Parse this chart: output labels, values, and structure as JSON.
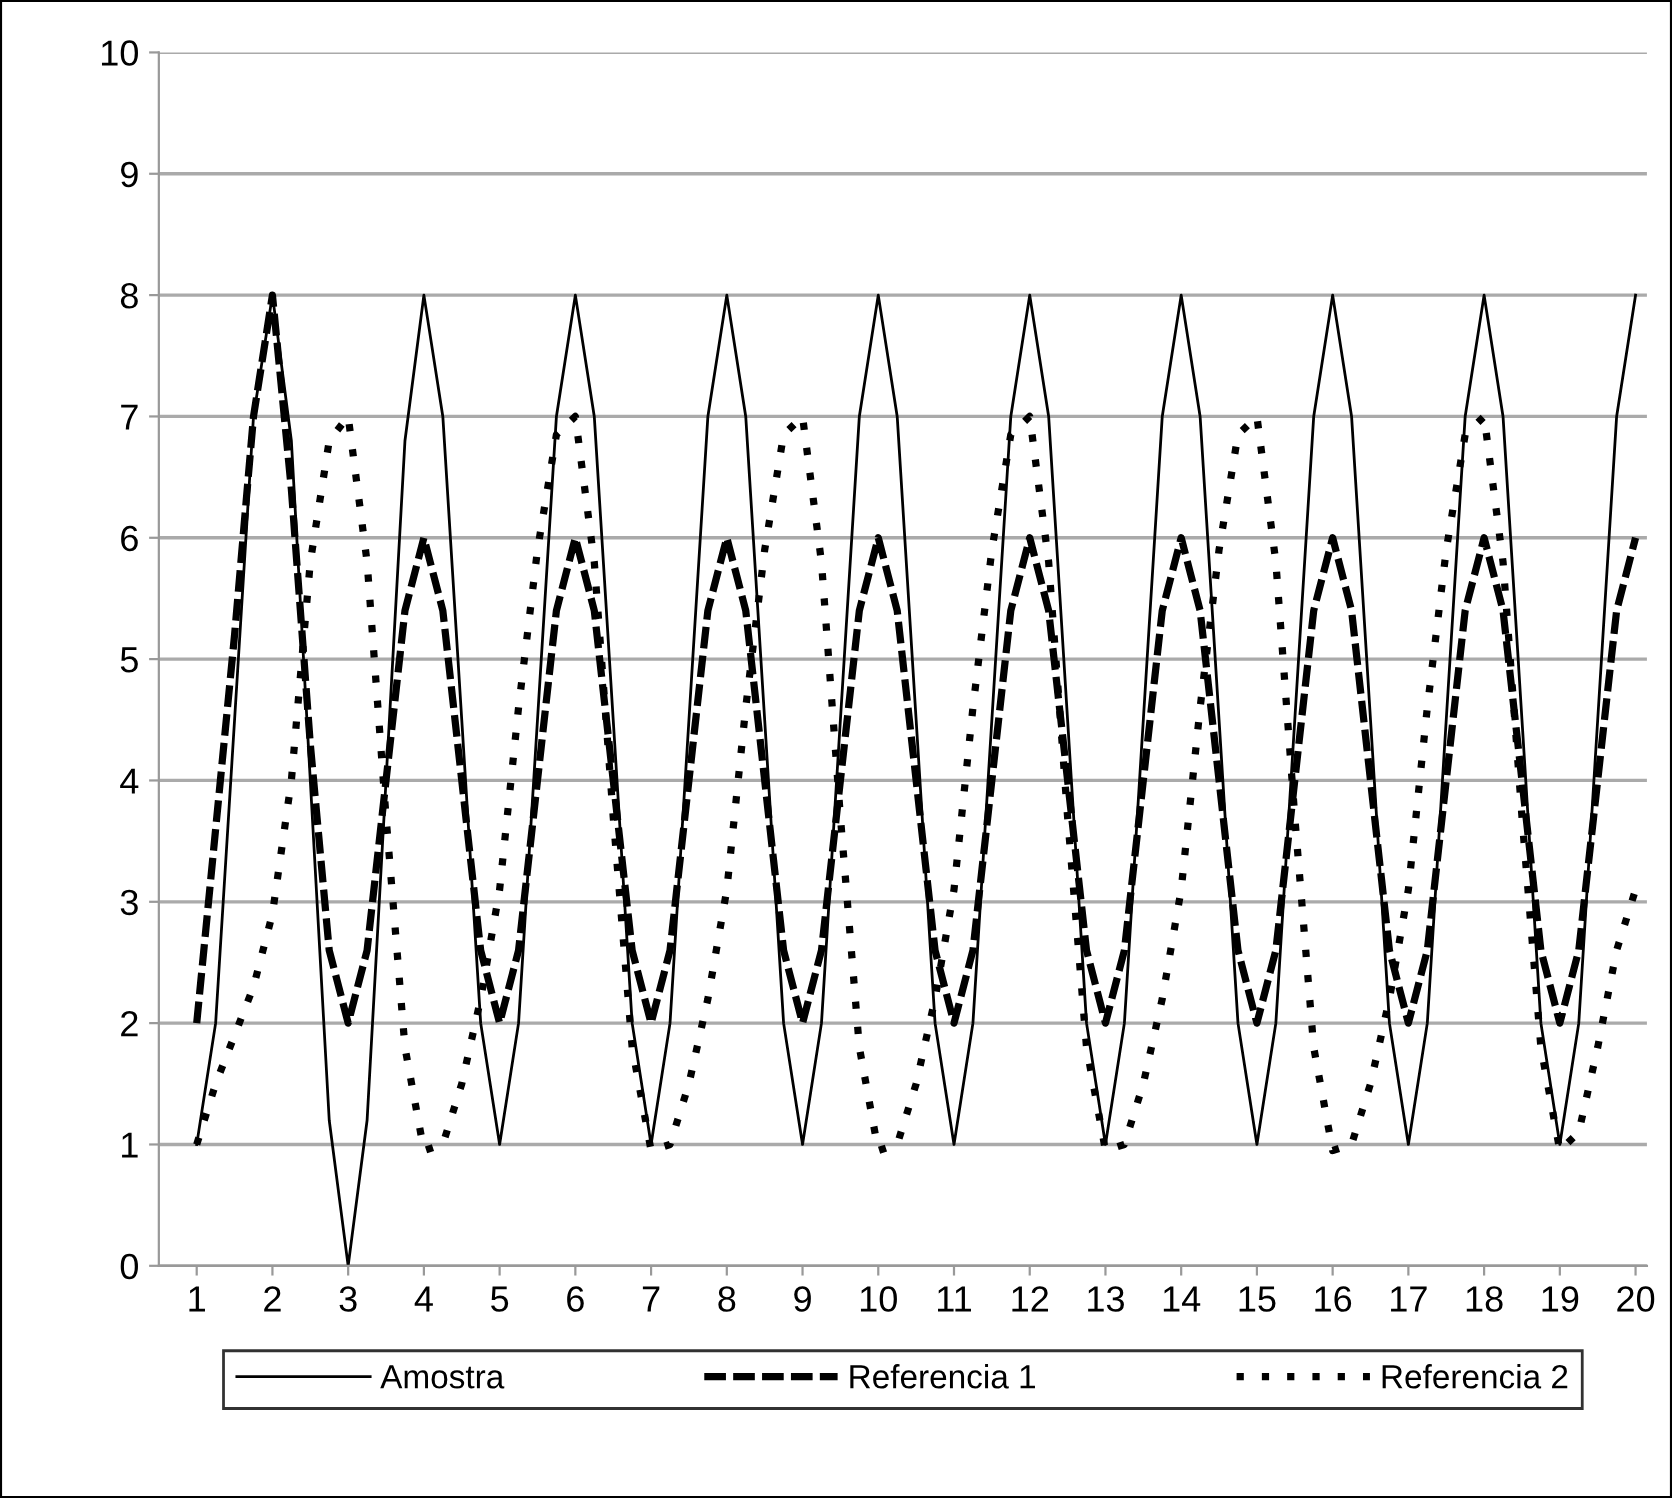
{
  "chart_data": {
    "type": "line",
    "x": [
      1,
      1.25,
      1.5,
      1.75,
      2,
      2.25,
      2.5,
      2.75,
      3,
      3.25,
      3.5,
      3.75,
      4,
      4.25,
      4.5,
      4.75,
      5,
      5.25,
      5.5,
      5.75,
      6,
      6.25,
      6.5,
      6.75,
      7,
      7.25,
      7.5,
      7.75,
      8,
      8.25,
      8.5,
      8.75,
      9,
      9.25,
      9.5,
      9.75,
      10,
      10.25,
      10.5,
      10.75,
      11,
      11.25,
      11.5,
      11.75,
      12,
      12.25,
      12.5,
      12.75,
      13,
      13.25,
      13.5,
      13.75,
      14,
      14.25,
      14.5,
      14.75,
      15,
      15.25,
      15.5,
      15.75,
      16,
      16.25,
      16.5,
      16.75,
      17,
      17.25,
      17.5,
      17.75,
      18,
      18.25,
      18.5,
      18.75,
      19,
      19.25,
      19.5,
      19.75,
      20
    ],
    "series": [
      {
        "name": "Amostra",
        "color": "#000000",
        "line_style": "solid",
        "values": [
          1,
          2,
          4.5,
          7,
          8,
          6.8,
          4,
          1.2,
          0,
          1.2,
          4,
          6.8,
          8,
          7,
          4.5,
          2,
          1,
          2,
          4.5,
          7,
          8,
          7,
          4.5,
          2,
          1,
          2,
          4.5,
          7,
          8,
          7,
          4.5,
          2,
          1,
          2,
          4.5,
          7,
          8,
          7,
          4.5,
          2,
          1,
          2,
          4.5,
          7,
          8,
          7,
          4.5,
          2,
          1,
          2,
          4.5,
          7,
          8,
          7,
          4.5,
          2,
          1,
          2,
          4.5,
          7,
          8,
          7,
          4.5,
          2,
          1,
          2,
          4.5,
          7,
          8,
          7,
          4.5,
          2,
          1,
          2,
          4.5,
          7,
          8
        ]
      },
      {
        "name": "Referencia 1",
        "color": "#000000",
        "line_style": "dashed",
        "values": [
          2,
          3.6,
          5.2,
          7,
          8,
          6.4,
          4.3,
          2.6,
          2,
          2.6,
          4,
          5.4,
          6,
          5.4,
          4,
          2.6,
          2,
          2.6,
          4,
          5.4,
          6,
          5.4,
          4,
          2.6,
          2,
          2.6,
          4,
          5.4,
          6,
          5.4,
          4,
          2.6,
          2,
          2.6,
          4,
          5.4,
          6,
          5.4,
          4,
          2.6,
          2,
          2.6,
          4,
          5.4,
          6,
          5.4,
          4,
          2.6,
          2,
          2.6,
          4,
          5.4,
          6,
          5.4,
          4,
          2.6,
          2,
          2.6,
          4,
          5.4,
          6,
          5.4,
          4,
          2.6,
          2,
          2.6,
          4,
          5.4,
          6,
          5.4,
          4,
          2.6,
          2,
          2.6,
          4,
          5.4,
          6
        ]
      },
      {
        "name": "Referencia 2",
        "color": "#000000",
        "line_style": "dotted",
        "values": [
          1,
          1.5,
          1.9,
          2.3,
          2.9,
          4,
          5.8,
          6.8,
          7,
          5.8,
          3.7,
          1.8,
          0.95,
          1,
          1.5,
          2.2,
          3.1,
          4.6,
          5.9,
          6.85,
          7,
          5.8,
          3.7,
          1.8,
          0.95,
          1,
          1.5,
          2.2,
          3.1,
          4.6,
          5.9,
          6.85,
          7,
          5.8,
          3.7,
          1.8,
          0.95,
          1,
          1.5,
          2.2,
          3.1,
          4.6,
          5.9,
          6.85,
          7,
          5.8,
          3.7,
          1.8,
          0.95,
          1,
          1.5,
          2.2,
          3.1,
          4.6,
          5.9,
          6.85,
          7,
          5.8,
          3.7,
          1.8,
          0.95,
          1,
          1.5,
          2.2,
          3.1,
          4.6,
          5.9,
          6.85,
          7,
          5.8,
          3.7,
          1.8,
          0.95,
          1.1,
          1.8,
          2.6,
          3.1
        ]
      }
    ],
    "xlim": [
      0.5,
      20.15
    ],
    "xticks": [
      1,
      2,
      3,
      4,
      5,
      6,
      7,
      8,
      9,
      10,
      11,
      12,
      13,
      14,
      15,
      16,
      17,
      18,
      19,
      20
    ],
    "ylim": [
      0,
      10
    ],
    "yticks": [
      0,
      1,
      2,
      3,
      4,
      5,
      6,
      7,
      8,
      9,
      10
    ],
    "grid": "y",
    "legend": "bottom",
    "marker": "none"
  }
}
